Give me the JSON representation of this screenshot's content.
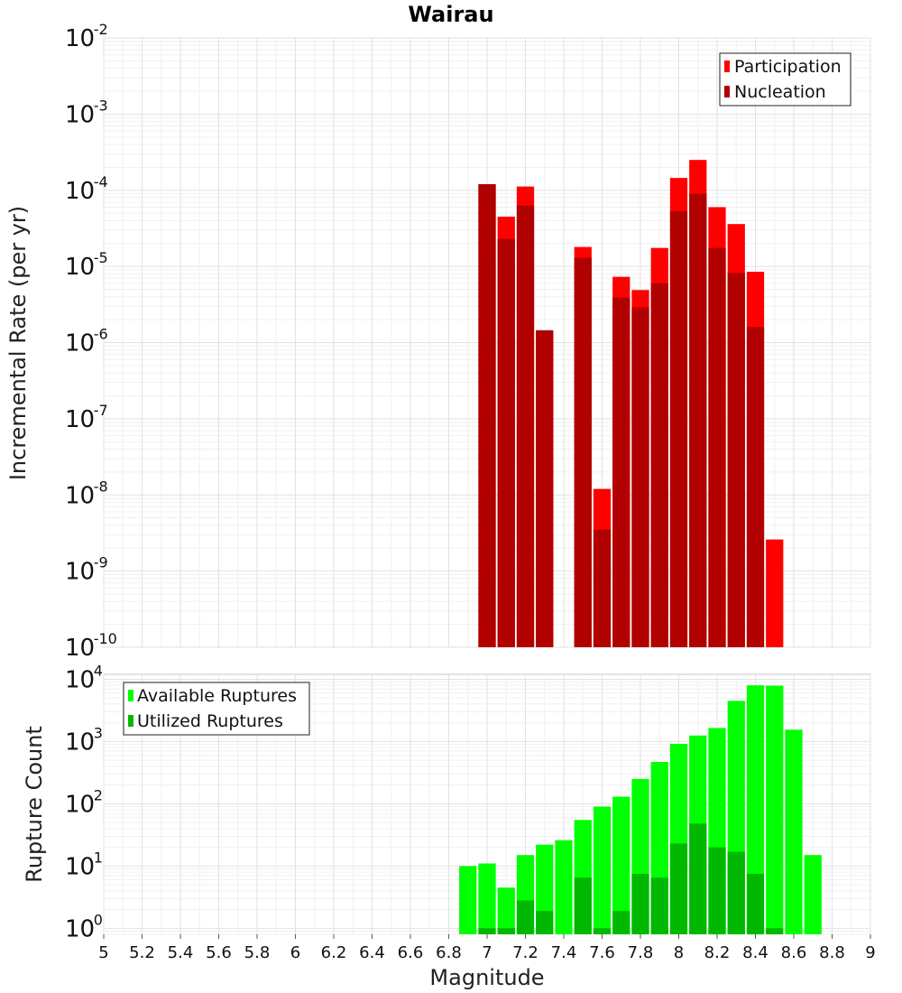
{
  "chart_data": [
    {
      "type": "bar",
      "title": "Wairau",
      "ylabel": "Incremental Rate (per yr)",
      "xlabel": "",
      "xlim": [
        5,
        9
      ],
      "ylim": [
        1e-10,
        0.01
      ],
      "yscale": "log",
      "ytick_exponents": [
        "-10",
        "-9",
        "-8",
        "-7",
        "-6",
        "-5",
        "-4",
        "-3",
        "-2"
      ],
      "bin_width": 0.1,
      "grid": true,
      "legend_position": "top-right",
      "x": [
        7.0,
        7.1,
        7.2,
        7.3,
        7.5,
        7.6,
        7.7,
        7.8,
        7.9,
        8.0,
        8.1,
        8.2,
        8.3,
        8.4,
        8.5
      ],
      "series": [
        {
          "name": "Participation",
          "color": "#ff0000",
          "values": [
            0.00012,
            4.5e-05,
            0.000112,
            1.45e-06,
            1.8e-05,
            1.2e-08,
            7.3e-06,
            4.9e-06,
            1.75e-05,
            0.000145,
            0.00025,
            6e-05,
            3.6e-05,
            8.5e-06,
            2.6e-09
          ]
        },
        {
          "name": "Nucleation",
          "color": "#b00000",
          "values": [
            0.00012,
            2.3e-05,
            6.3e-05,
            1.45e-06,
            1.3e-05,
            3.5e-09,
            3.9e-06,
            2.9e-06,
            6e-06,
            5.3e-05,
            9e-05,
            1.75e-05,
            8.2e-06,
            1.6e-06,
            null
          ]
        }
      ]
    },
    {
      "type": "bar",
      "title": "",
      "ylabel": "Rupture Count",
      "xlabel": "Magnitude",
      "xlim": [
        5,
        9
      ],
      "ylim": [
        0.8,
        12000
      ],
      "yscale": "log",
      "ytick_exponents": [
        "0",
        "1",
        "2",
        "3",
        "4"
      ],
      "x_ticks": [
        "5",
        "5.2",
        "5.4",
        "5.6",
        "5.8",
        "6",
        "6.2",
        "6.4",
        "6.6",
        "6.8",
        "7",
        "7.2",
        "7.4",
        "7.6",
        "7.8",
        "8",
        "8.2",
        "8.4",
        "8.6",
        "8.8",
        "9"
      ],
      "bin_width": 0.1,
      "grid": true,
      "legend_position": "top-left",
      "x": [
        6.9,
        7.0,
        7.1,
        7.2,
        7.3,
        7.4,
        7.5,
        7.6,
        7.7,
        7.8,
        7.9,
        8.0,
        8.1,
        8.2,
        8.3,
        8.4,
        8.5,
        8.6,
        8.7
      ],
      "series": [
        {
          "name": "Available Ruptures",
          "color": "#00ff00",
          "values": [
            10,
            11,
            4.5,
            15,
            22,
            26,
            55,
            90,
            130,
            250,
            470,
            920,
            1250,
            1650,
            4500,
            8000,
            7900,
            1550,
            15
          ]
        },
        {
          "name": "Utilized Ruptures",
          "color": "#00b800",
          "values": [
            null,
            1,
            1,
            2.8,
            1.9,
            null,
            6.5,
            1,
            1.9,
            7.5,
            6.5,
            23,
            48,
            20,
            17,
            7.5,
            1,
            null,
            null
          ]
        }
      ]
    }
  ]
}
